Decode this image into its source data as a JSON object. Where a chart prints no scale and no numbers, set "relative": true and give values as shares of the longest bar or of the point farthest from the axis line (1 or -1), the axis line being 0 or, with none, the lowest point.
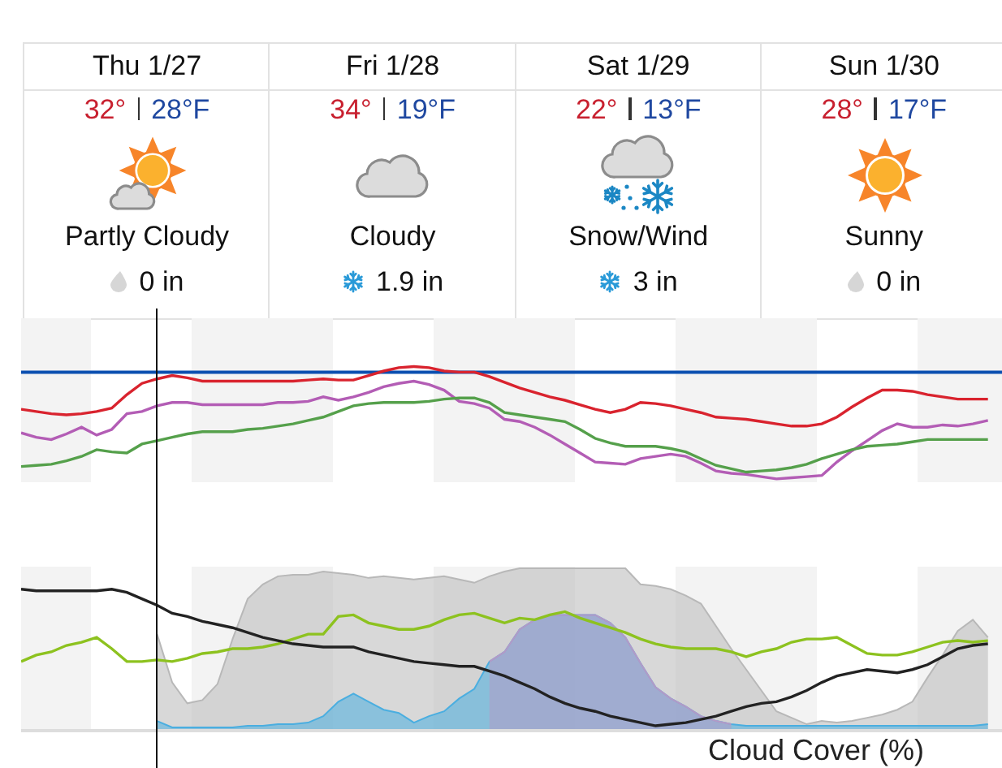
{
  "chart_data": [
    {
      "type": "other",
      "categories": [
        "Thu 1/27",
        "Fri 1/28",
        "Sat 1/29",
        "Sun 1/30"
      ],
      "series": [
        {
          "color": "#c8202f",
          "values": [
            32,
            34,
            22,
            28
          ],
          "value_labels": [
            "32°",
            "34°",
            "22°",
            "28°"
          ]
        },
        {
          "color": "#1f48a0",
          "values": [
            28,
            19,
            13,
            17
          ],
          "value_labels": [
            "28°F",
            "19°F",
            "13°F",
            "17°F"
          ]
        },
        {
          "color": "#111111",
          "values": [
            0,
            1.9,
            3,
            0
          ],
          "value_labels": [
            "0 in",
            "1.9 in",
            "3 in",
            "0 in"
          ]
        }
      ],
      "annotations": [
        "Partly Cloudy",
        "Cloudy",
        "Snow/Wind",
        "Sunny"
      ]
    },
    {
      "type": "line",
      "relative": true,
      "categories": [
        null,
        null,
        null,
        null,
        null,
        null,
        null,
        null,
        null,
        null,
        null,
        null,
        null,
        null,
        null,
        null,
        null,
        null,
        null,
        null,
        null,
        null,
        null,
        null,
        null,
        null,
        null,
        null,
        null,
        null,
        null,
        null,
        null,
        null,
        null,
        null,
        null,
        null,
        null,
        null,
        null,
        null,
        null,
        null,
        null,
        null,
        null,
        null,
        null,
        null,
        null,
        null,
        null,
        null,
        null,
        null,
        null,
        null,
        null,
        null,
        null,
        null,
        null,
        null,
        null
      ],
      "series": [
        {
          "color": "#d9232e",
          "values": [
            0.62,
            0.6,
            0.58,
            0.57,
            0.58,
            0.6,
            0.63,
            0.75,
            0.85,
            0.89,
            0.92,
            0.9,
            0.87,
            0.87,
            0.87,
            0.87,
            0.87,
            0.87,
            0.87,
            0.88,
            0.89,
            0.88,
            0.88,
            0.92,
            0.96,
            0.99,
            1.0,
            0.99,
            0.96,
            0.95,
            0.95,
            0.91,
            0.86,
            0.81,
            0.77,
            0.73,
            0.7,
            0.66,
            0.62,
            0.59,
            0.62,
            0.68,
            0.67,
            0.65,
            0.62,
            0.59,
            0.55,
            0.54,
            0.53,
            0.51,
            0.49,
            0.47,
            0.47,
            0.49,
            0.55,
            0.64,
            0.72,
            0.79,
            0.79,
            0.78,
            0.75,
            0.73,
            0.71,
            0.71,
            0.71
          ]
        },
        {
          "color": "#b35db5",
          "values": [
            0.41,
            0.37,
            0.35,
            0.4,
            0.46,
            0.39,
            0.44,
            0.58,
            0.6,
            0.65,
            0.68,
            0.68,
            0.66,
            0.66,
            0.66,
            0.66,
            0.66,
            0.68,
            0.68,
            0.69,
            0.73,
            0.7,
            0.73,
            0.77,
            0.82,
            0.85,
            0.87,
            0.84,
            0.79,
            0.69,
            0.67,
            0.63,
            0.53,
            0.51,
            0.46,
            0.39,
            0.31,
            0.23,
            0.15,
            0.14,
            0.13,
            0.18,
            0.2,
            0.22,
            0.2,
            0.14,
            0.07,
            0.05,
            0.04,
            0.02,
            0,
            0.01,
            0.02,
            0.03,
            0.15,
            0.25,
            0.34,
            0.43,
            0.49,
            0.46,
            0.46,
            0.48,
            0.47,
            0.49,
            0.52
          ]
        },
        {
          "color": "#55a04b",
          "values": [
            0.11,
            0.12,
            0.13,
            0.16,
            0.2,
            0.26,
            0.24,
            0.23,
            0.31,
            0.34,
            0.37,
            0.4,
            0.42,
            0.42,
            0.42,
            0.44,
            0.45,
            0.47,
            0.49,
            0.52,
            0.55,
            0.6,
            0.65,
            0.67,
            0.68,
            0.68,
            0.68,
            0.69,
            0.71,
            0.72,
            0.72,
            0.68,
            0.59,
            0.57,
            0.55,
            0.53,
            0.51,
            0.44,
            0.36,
            0.32,
            0.29,
            0.29,
            0.29,
            0.27,
            0.24,
            0.18,
            0.12,
            0.09,
            0.06,
            0.07,
            0.08,
            0.1,
            0.13,
            0.18,
            0.22,
            0.26,
            0.29,
            0.3,
            0.31,
            0.33,
            0.35,
            0.35,
            0.35,
            0.35,
            0.35
          ]
        }
      ],
      "ref_lines": [
        {
          "axis": "y",
          "value": 0.95,
          "color": "#0b4fb0"
        }
      ]
    },
    {
      "type": "line",
      "relative": true,
      "categories": [
        null,
        null,
        null,
        null,
        null,
        null,
        null,
        null,
        null,
        null,
        null,
        null,
        null,
        null,
        null,
        null,
        null,
        null,
        null,
        null,
        null,
        null,
        null,
        null,
        null,
        null,
        null,
        null,
        null,
        null,
        null,
        null,
        null,
        null,
        null,
        null,
        null,
        null,
        null,
        null,
        null,
        null,
        null,
        null,
        null,
        null,
        null,
        null,
        null,
        null,
        null,
        null,
        null,
        null,
        null,
        null,
        null,
        null,
        null,
        null,
        null,
        null,
        null,
        null,
        null
      ],
      "series": [
        {
          "type": "area",
          "color": "#b8b8b8",
          "values": [
            null,
            null,
            null,
            null,
            null,
            null,
            null,
            null,
            null,
            0.59,
            0.29,
            0.16,
            0.18,
            0.28,
            0.56,
            0.81,
            0.9,
            0.95,
            0.96,
            0.96,
            0.98,
            0.97,
            0.96,
            0.94,
            0.95,
            0.94,
            0.93,
            0.94,
            0.95,
            0.93,
            0.91,
            0.95,
            0.98,
            1.0,
            1.0,
            1.0,
            1.0,
            1.0,
            1.0,
            1.0,
            1.0,
            0.9,
            0.89,
            0.87,
            0.83,
            0.78,
            0.64,
            0.5,
            0.37,
            0.24,
            0.11,
            0.07,
            0.03,
            0.05,
            0.04,
            0.05,
            0.07,
            0.09,
            0.12,
            0.17,
            0.32,
            0.46,
            0.61,
            0.68,
            0.57
          ]
        },
        {
          "type": "area",
          "color": "#4aaee0",
          "values": [
            null,
            null,
            null,
            null,
            null,
            null,
            null,
            null,
            null,
            0.05,
            0.01,
            0.01,
            0.01,
            0.01,
            0.01,
            0.02,
            0.02,
            0.03,
            0.03,
            0.04,
            0.08,
            0.17,
            0.22,
            0.17,
            0.12,
            0.1,
            0.04,
            0.08,
            0.11,
            0.19,
            0.25,
            0.42,
            0.48,
            0.62,
            0.68,
            0.71,
            0.71,
            0.71,
            0.71,
            0.66,
            0.57,
            0.41,
            0.26,
            0.19,
            0.14,
            0.08,
            0.05,
            0.03,
            0.02,
            0.02,
            0.02,
            0.02,
            0.02,
            0.02,
            0.02,
            0.02,
            0.02,
            0.02,
            0.02,
            0.02,
            0.02,
            0.02,
            0.02,
            0.02,
            0.03
          ]
        },
        {
          "type": "area",
          "color": "#b39ac7",
          "values": [
            null,
            null,
            null,
            null,
            null,
            null,
            null,
            null,
            null,
            null,
            null,
            null,
            null,
            null,
            null,
            null,
            null,
            null,
            null,
            null,
            null,
            null,
            null,
            null,
            null,
            null,
            null,
            null,
            null,
            null,
            null,
            0.42,
            0.48,
            0.62,
            0.68,
            0.71,
            0.71,
            0.71,
            0.71,
            0.66,
            0.57,
            0.41,
            0.26,
            0.19,
            0.14,
            0.08,
            0.05,
            0.03,
            null,
            null,
            null,
            null,
            null,
            null,
            null,
            null,
            null,
            null,
            null,
            null,
            null,
            null,
            null,
            null,
            null
          ]
        },
        {
          "color": "#8dc21f",
          "values": [
            0.42,
            0.46,
            0.48,
            0.52,
            0.54,
            0.57,
            0.5,
            0.42,
            0.42,
            0.43,
            0.42,
            0.44,
            0.47,
            0.48,
            0.5,
            0.5,
            0.51,
            0.53,
            0.56,
            0.59,
            0.59,
            0.7,
            0.71,
            0.66,
            0.64,
            0.62,
            0.62,
            0.64,
            0.68,
            0.71,
            0.72,
            0.69,
            0.66,
            0.69,
            0.68,
            0.71,
            0.73,
            0.69,
            0.66,
            0.63,
            0.6,
            0.56,
            0.53,
            0.51,
            0.5,
            0.5,
            0.5,
            0.48,
            0.45,
            0.48,
            0.5,
            0.54,
            0.56,
            0.56,
            0.57,
            0.52,
            0.47,
            0.46,
            0.46,
            0.48,
            0.51,
            0.54,
            0.55,
            0.54,
            0.55
          ]
        },
        {
          "color": "#222222",
          "values": [
            0.87,
            0.86,
            0.86,
            0.86,
            0.86,
            0.86,
            0.87,
            0.85,
            0.81,
            0.77,
            0.72,
            0.7,
            0.67,
            0.65,
            0.63,
            0.6,
            0.57,
            0.55,
            0.53,
            0.52,
            0.51,
            0.51,
            0.51,
            0.48,
            0.46,
            0.44,
            0.42,
            0.41,
            0.4,
            0.39,
            0.39,
            0.36,
            0.33,
            0.29,
            0.25,
            0.2,
            0.16,
            0.13,
            0.11,
            0.08,
            0.06,
            0.04,
            0.02,
            0.03,
            0.04,
            0.06,
            0.08,
            0.11,
            0.14,
            0.16,
            0.17,
            0.2,
            0.24,
            0.29,
            0.33,
            0.35,
            0.37,
            0.36,
            0.35,
            0.37,
            0.4,
            0.45,
            0.5,
            0.52,
            0.53
          ]
        }
      ],
      "annotations": [
        "Cloud Cover (%)"
      ]
    }
  ]
}
